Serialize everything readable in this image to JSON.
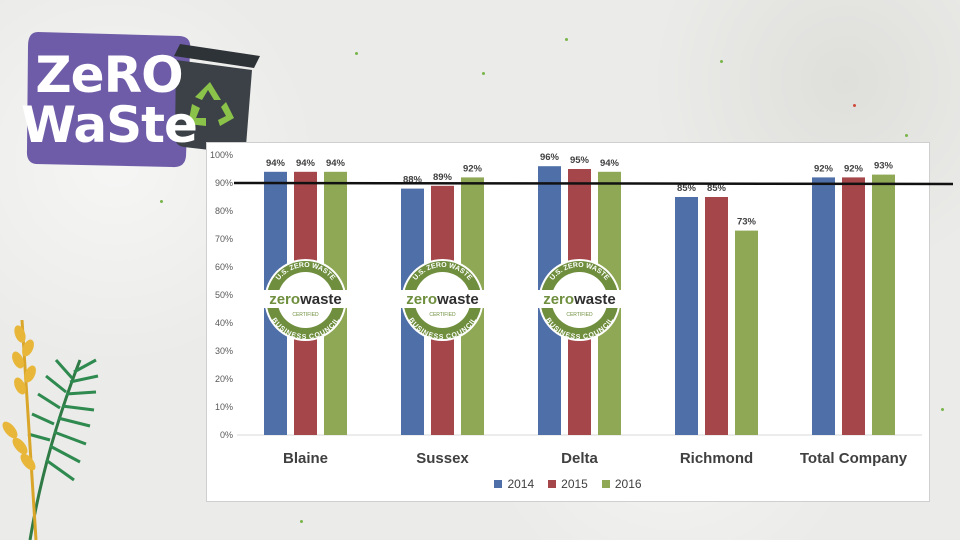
{
  "logo": {
    "line1": "ZeRO",
    "line2": "WaSte",
    "icon": "recycle-bin-icon",
    "colors": {
      "badge": "#6e5ca8",
      "bin": "#3b4147",
      "recycle": "#8bc34a"
    }
  },
  "seal": {
    "top_text": "U.S. ZERO WASTE",
    "word_zero": "zero",
    "word_waste": "waste",
    "middle_text": "CERTIFIED",
    "bottom_text": "BUSINESS COUNCIL",
    "icon": "zero-waste-certified-seal-icon",
    "certified_sites": [
      "Blaine",
      "Sussex",
      "Delta"
    ]
  },
  "chart_data": {
    "type": "bar",
    "categories": [
      "Blaine",
      "Sussex",
      "Delta",
      "Richmond",
      "Total Company"
    ],
    "series": [
      {
        "name": "2014",
        "color": "#4e6fa8",
        "values": [
          94,
          88,
          96,
          85,
          92
        ]
      },
      {
        "name": "2015",
        "color": "#a5474a",
        "values": [
          94,
          89,
          95,
          85,
          92
        ]
      },
      {
        "name": "2016",
        "color": "#8fa855",
        "values": [
          94,
          92,
          94,
          73,
          93
        ]
      }
    ],
    "data_label_suffix": "%",
    "ylim": [
      0,
      100
    ],
    "yticks": [
      "0%",
      "10%",
      "20%",
      "30%",
      "40%",
      "50%",
      "60%",
      "70%",
      "80%",
      "90%",
      "100%"
    ],
    "reference_line": 90,
    "title": "",
    "xlabel": "",
    "ylabel": "",
    "grid": false,
    "legend_position": "bottom"
  }
}
